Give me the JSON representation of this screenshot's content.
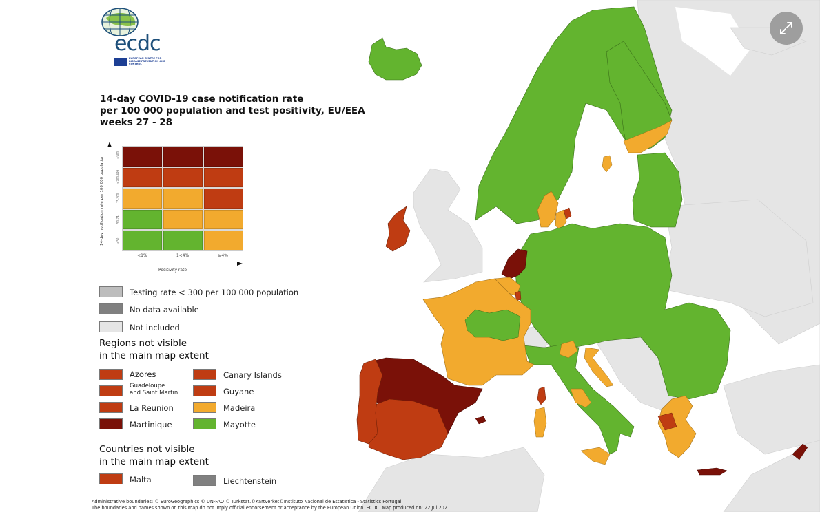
{
  "logo": {
    "text": "ecdc",
    "subtitle": "EUROPEAN CENTRE FOR DISEASE PREVENTION AND CONTROL"
  },
  "title": "14-day COVID-19 case notification rate\nper 100 000 population and test positivity, EU/EEA\nweeks 27 - 28",
  "colors": {
    "dark_red": "#7a1108",
    "red": "#bf3c12",
    "orange": "#f2aa2e",
    "green": "#63b42f",
    "testing_low": "#bdbdbd",
    "no_data": "#808080",
    "not_included": "#e5e5e5",
    "sea": "#ffffff"
  },
  "matrix": {
    "y_axis_title": "14-day notification rate per 100 000 population",
    "x_axis_title": "Positivity rate",
    "row_labels": [
      "≥500",
      ">200-499",
      "75-200",
      "50-74",
      "<50"
    ],
    "col_labels": [
      "<1%",
      "1<4%",
      "≥4%"
    ],
    "cells": [
      [
        "dark_red",
        "dark_red",
        "dark_red"
      ],
      [
        "red",
        "red",
        "red"
      ],
      [
        "orange",
        "orange",
        "red"
      ],
      [
        "green",
        "orange",
        "orange"
      ],
      [
        "green",
        "green",
        "orange"
      ]
    ]
  },
  "legend": {
    "testing_low": "Testing rate < 300 per 100 000 population",
    "no_data": "No data available",
    "not_included": "Not included"
  },
  "regions": {
    "title": "Regions not visible\nin the main map extent",
    "items": [
      {
        "label": "Azores",
        "color": "red"
      },
      {
        "label": "Guadeloupe\nand Saint Martin",
        "color": "red"
      },
      {
        "label": "La Reunion",
        "color": "red"
      },
      {
        "label": "Martinique",
        "color": "dark_red"
      },
      {
        "label": "Canary Islands",
        "color": "red"
      },
      {
        "label": "Guyane",
        "color": "red"
      },
      {
        "label": "Madeira",
        "color": "orange"
      },
      {
        "label": "Mayotte",
        "color": "green"
      }
    ]
  },
  "countries": {
    "title": "Countries not visible\nin the main map extent",
    "items": [
      {
        "label": "Malta",
        "color": "red"
      },
      {
        "label": "Liechtenstein",
        "color": "no_data"
      }
    ]
  },
  "footer": {
    "line1": "Administrative boundaries: © EuroGeographics © UN-FAO © Turkstat.©Kartverket©Instituto Nacional de Estatística - Statistics Portugal.",
    "line2": "The boundaries and names shown on this map do not imply official endorsement or acceptance by the European Union. ECDC. Map produced on: 22 Jul 2021"
  },
  "map_regions": [
    {
      "name": "Iceland",
      "color": "green"
    },
    {
      "name": "Norway",
      "color": "green"
    },
    {
      "name": "Sweden",
      "color": "green",
      "note": "one orange region (Uppsala area)"
    },
    {
      "name": "Finland",
      "color": "green",
      "note": "southern regions orange"
    },
    {
      "name": "Estonia",
      "color": "green"
    },
    {
      "name": "Latvia",
      "color": "green"
    },
    {
      "name": "Lithuania",
      "color": "green"
    },
    {
      "name": "Denmark",
      "color": "orange",
      "note": "Capital region red"
    },
    {
      "name": "Ireland",
      "color": "red"
    },
    {
      "name": "Netherlands",
      "color": "dark_red"
    },
    {
      "name": "Belgium",
      "color": "orange"
    },
    {
      "name": "Luxembourg",
      "color": "red"
    },
    {
      "name": "France",
      "color": "orange",
      "note": "central regions green"
    },
    {
      "name": "Spain",
      "color": "dark_red",
      "note": "western/southern regions red"
    },
    {
      "name": "Portugal",
      "color": "red"
    },
    {
      "name": "Germany",
      "color": "green"
    },
    {
      "name": "Poland",
      "color": "green"
    },
    {
      "name": "Czechia",
      "color": "green"
    },
    {
      "name": "Slovakia",
      "color": "green"
    },
    {
      "name": "Austria",
      "color": "green"
    },
    {
      "name": "Hungary",
      "color": "green"
    },
    {
      "name": "Slovenia",
      "color": "green"
    },
    {
      "name": "Croatia",
      "color": "orange"
    },
    {
      "name": "Romania",
      "color": "green"
    },
    {
      "name": "Bulgaria",
      "color": "green"
    },
    {
      "name": "Italy",
      "color": "green",
      "note": "Lazio, Sicily, Sardinia, Veneto orange"
    },
    {
      "name": "Greece",
      "color": "orange",
      "note": "Thessaly, Attica red; Crete dark red"
    },
    {
      "name": "Cyprus",
      "color": "dark_red"
    },
    {
      "name": "Corsica",
      "color": "red"
    },
    {
      "name": "Balearic Islands",
      "color": "dark_red"
    },
    {
      "name": "Switzerland",
      "color": "not_included"
    },
    {
      "name": "United Kingdom",
      "color": "not_included"
    }
  ],
  "controls": {
    "expand_label": "⤢"
  }
}
